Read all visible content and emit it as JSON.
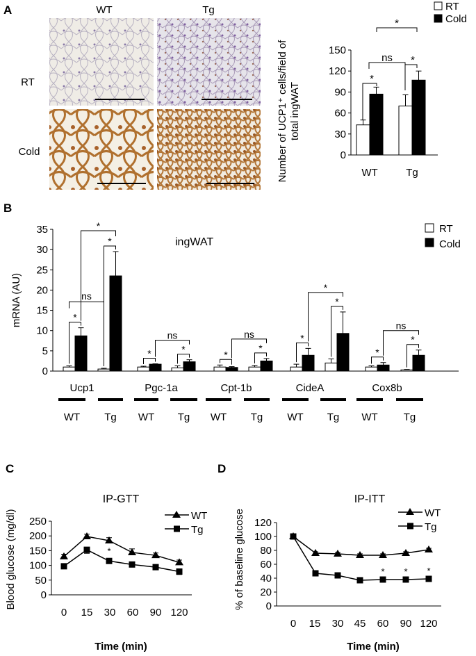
{
  "panel_labels": {
    "a": "A",
    "b": "B",
    "c": "C",
    "d": "D"
  },
  "panel_a": {
    "image_col_labels": [
      "WT",
      "Tg"
    ],
    "image_row_labels": [
      "RT",
      "Cold"
    ],
    "legend": [
      "RT",
      "Cold"
    ],
    "ylabel_line1": "Number of UCP1⁺ cells/field of",
    "ylabel_line2": "total ingWAT",
    "sig_labels": [
      "*",
      "ns",
      "*",
      "*"
    ]
  },
  "panel_b": {
    "title": "ingWAT",
    "legend": [
      "RT",
      "Cold"
    ],
    "gene_labels": [
      "Ucp1",
      "Pgc-1a",
      "Cpt-1b",
      "CideA",
      "Cox8b"
    ],
    "group_labels": [
      "WT",
      "Tg",
      "WT",
      "Tg",
      "WT",
      "Tg",
      "WT",
      "Tg",
      "WT",
      "Tg"
    ],
    "sig_rows": [
      [
        "*",
        "ns",
        "*",
        "*"
      ],
      [
        "*",
        "ns",
        "*"
      ],
      [
        "*",
        "ns",
        "*"
      ],
      [
        "*",
        "*",
        "*"
      ],
      [
        "*",
        "ns",
        "*"
      ]
    ]
  },
  "panel_c": {
    "sig": [
      "*",
      "*",
      "*",
      "*"
    ]
  },
  "panel_d": {
    "sig": [
      "*",
      "*",
      "*"
    ]
  },
  "chart_data": [
    {
      "type": "bar",
      "panel": "A",
      "categories": [
        "WT",
        "Tg"
      ],
      "series": [
        {
          "name": "RT",
          "values": [
            43,
            70
          ],
          "errors": [
            7,
            16
          ],
          "color": "#ffffff"
        },
        {
          "name": "Cold",
          "values": [
            87,
            107
          ],
          "errors": [
            10,
            13
          ],
          "color": "#000000"
        }
      ],
      "ylim": [
        0,
        150
      ],
      "yticks": [
        "0",
        "30",
        "60",
        "90",
        "120",
        "150"
      ],
      "ylabel": "Number of UCP1⁺ cells/field of total ingWAT",
      "legend_position": "top-right"
    },
    {
      "type": "bar",
      "panel": "B",
      "title": "ingWAT",
      "categories": [
        "Ucp1 WT",
        "Ucp1 Tg",
        "Pgc-1a WT",
        "Pgc-1a Tg",
        "Cpt-1b WT",
        "Cpt-1b Tg",
        "CideA WT",
        "CideA Tg",
        "Cox8b WT",
        "Cox8b Tg"
      ],
      "series": [
        {
          "name": "RT",
          "values": [
            1.0,
            0.5,
            1.0,
            0.8,
            1.0,
            1.0,
            1.0,
            2.0,
            1.0,
            0.3
          ],
          "errors": [
            0.3,
            0.2,
            0.2,
            0.5,
            0.5,
            0.4,
            0.7,
            1.0,
            0.3,
            0.1
          ],
          "color": "#ffffff"
        },
        {
          "name": "Cold",
          "values": [
            8.7,
            23.5,
            1.7,
            2.3,
            0.9,
            2.5,
            3.9,
            9.3,
            1.5,
            3.9
          ],
          "errors": [
            2.0,
            6.0,
            0.1,
            0.5,
            0.2,
            0.6,
            1.7,
            5.3,
            0.6,
            1.3
          ],
          "color": "#000000"
        }
      ],
      "ylim": [
        0,
        35
      ],
      "yticks": [
        "0",
        "5",
        "10",
        "15",
        "20",
        "25",
        "30",
        "35"
      ],
      "ylabel": "mRNA (AU)",
      "legend_position": "top-right"
    },
    {
      "type": "line",
      "panel": "C",
      "title": "IP-GTT",
      "x": [
        0,
        15,
        30,
        60,
        90,
        120
      ],
      "xticks": [
        "0",
        "15",
        "30",
        "60",
        "90",
        "120"
      ],
      "series": [
        {
          "name": "WT",
          "values": [
            130,
            198,
            184,
            144,
            134,
            110
          ],
          "errors": [
            8,
            8,
            10,
            12,
            8,
            8
          ],
          "marker": "triangle"
        },
        {
          "name": "Tg",
          "values": [
            97,
            153,
            115,
            103,
            94,
            79
          ],
          "errors": [
            5,
            12,
            6,
            5,
            5,
            10
          ],
          "marker": "square"
        }
      ],
      "ylim": [
        0,
        250
      ],
      "yticks": [
        "0",
        "50",
        "100",
        "150",
        "200",
        "250"
      ],
      "xlabel": "Time (min)",
      "ylabel": "Blood glucose (mg/dl)",
      "legend_position": "top-right"
    },
    {
      "type": "line",
      "panel": "D",
      "title": "IP-ITT",
      "x": [
        0,
        15,
        30,
        45,
        60,
        90,
        120
      ],
      "xticks": [
        "0",
        "15",
        "30",
        "45",
        "60",
        "90",
        "120"
      ],
      "series": [
        {
          "name": "WT",
          "values": [
            100,
            76,
            75,
            73,
            73,
            76,
            81
          ],
          "errors": [
            2,
            2,
            2,
            2,
            2,
            2,
            2
          ],
          "marker": "triangle"
        },
        {
          "name": "Tg",
          "values": [
            100,
            47,
            44,
            37,
            38,
            38,
            39
          ],
          "errors": [
            2,
            2,
            2,
            1,
            1,
            1,
            1
          ],
          "marker": "square"
        }
      ],
      "ylim": [
        0,
        120
      ],
      "yticks": [
        "0",
        "20",
        "40",
        "60",
        "80",
        "100",
        "120"
      ],
      "xlabel": "Time (min)",
      "ylabel": "% of baseline glucose",
      "legend_position": "top-right"
    }
  ]
}
